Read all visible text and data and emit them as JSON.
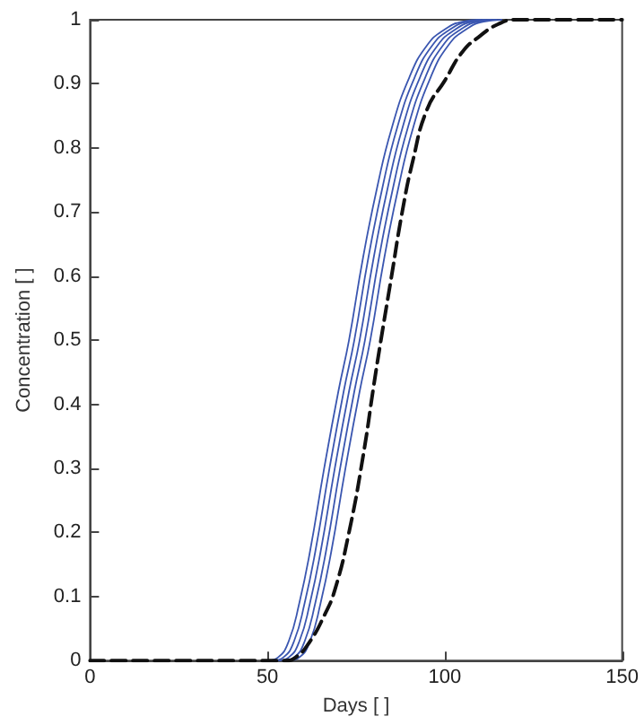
{
  "chart_data": {
    "type": "line",
    "xlabel": "Days [ ]",
    "ylabel": "Concentration [ ]",
    "xlim": [
      0,
      150
    ],
    "xticks": [
      0,
      50,
      100,
      150
    ],
    "ylim": [
      0,
      1
    ],
    "yticks": [
      0,
      0.1,
      0.2,
      0.3,
      0.4,
      0.5,
      0.6,
      0.7,
      0.8,
      0.9,
      1
    ],
    "grid": false,
    "marker": "none",
    "series": [
      {
        "color": "#3a56b0",
        "line_style": "solid",
        "x": [
          50,
          53,
          56,
          59,
          62,
          66,
          70,
          73,
          77,
          81,
          85,
          90,
          95,
          100,
          105,
          110
        ],
        "values": [
          0,
          0.005,
          0.03,
          0.09,
          0.17,
          0.3,
          0.42,
          0.5,
          0.63,
          0.74,
          0.83,
          0.91,
          0.96,
          0.985,
          0.997,
          1
        ]
      },
      {
        "color": "#3a56b0",
        "line_style": "solid",
        "x": [
          51.5,
          54.5,
          57.5,
          60.5,
          63.5,
          67.5,
          71.5,
          74.5,
          78.5,
          82.5,
          86.5,
          91.5,
          96.5,
          101.5,
          106.5,
          111.5
        ],
        "values": [
          0,
          0.005,
          0.03,
          0.09,
          0.17,
          0.3,
          0.42,
          0.5,
          0.63,
          0.74,
          0.83,
          0.91,
          0.96,
          0.985,
          0.997,
          1
        ]
      },
      {
        "color": "#3a56b0",
        "line_style": "solid",
        "x": [
          53,
          56,
          59,
          62,
          65,
          69,
          73,
          76,
          80,
          84,
          88,
          93,
          98,
          103,
          108,
          113
        ],
        "values": [
          0,
          0.005,
          0.03,
          0.09,
          0.17,
          0.3,
          0.42,
          0.5,
          0.63,
          0.74,
          0.83,
          0.91,
          0.96,
          0.985,
          0.997,
          1
        ]
      },
      {
        "color": "#3a56b0",
        "line_style": "solid",
        "x": [
          54.5,
          57.5,
          60.5,
          63.5,
          66.5,
          70.5,
          74.5,
          77.5,
          81.5,
          85.5,
          89.5,
          94.5,
          99.5,
          104.5,
          109.5,
          114.5
        ],
        "values": [
          0,
          0.005,
          0.03,
          0.09,
          0.17,
          0.3,
          0.42,
          0.5,
          0.63,
          0.74,
          0.83,
          0.91,
          0.96,
          0.985,
          0.997,
          1
        ]
      },
      {
        "color": "#3a56b0",
        "line_style": "solid",
        "x": [
          56,
          59,
          62,
          65,
          68,
          72,
          76,
          79,
          83,
          87,
          91,
          96,
          101,
          106,
          111,
          116
        ],
        "values": [
          0,
          0.005,
          0.03,
          0.09,
          0.17,
          0.3,
          0.42,
          0.5,
          0.63,
          0.74,
          0.83,
          0.91,
          0.96,
          0.985,
          0.997,
          1
        ]
      },
      {
        "color": "#111111",
        "line_style": "dashed",
        "x": [
          0,
          55,
          58,
          62,
          66,
          69,
          73,
          77,
          80,
          82,
          85,
          88,
          91,
          95,
          100,
          105,
          110,
          115,
          120,
          150
        ],
        "values": [
          0,
          0,
          0.005,
          0.03,
          0.07,
          0.11,
          0.2,
          0.32,
          0.43,
          0.5,
          0.6,
          0.7,
          0.78,
          0.86,
          0.905,
          0.95,
          0.975,
          0.993,
          1,
          1
        ]
      }
    ]
  }
}
